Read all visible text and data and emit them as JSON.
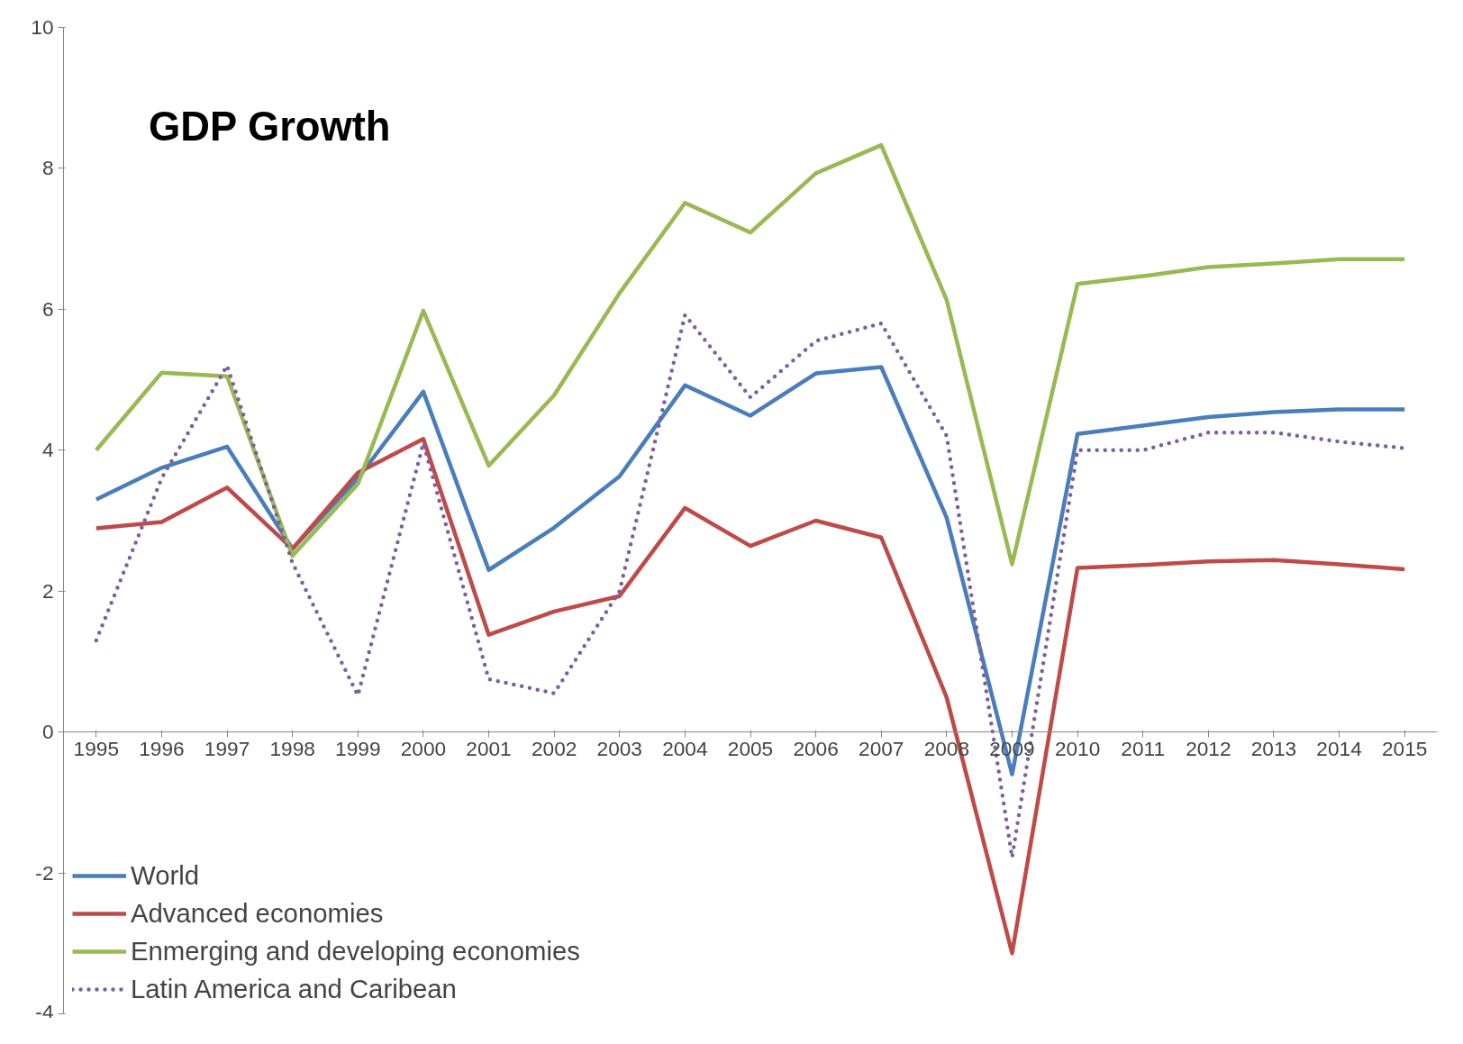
{
  "chart_data": {
    "type": "line",
    "title": "GDP Growth",
    "categories": [
      "1995",
      "1996",
      "1997",
      "1998",
      "1999",
      "2000",
      "2001",
      "2002",
      "2003",
      "2004",
      "2005",
      "2006",
      "2007",
      "2008",
      "2009",
      "2010",
      "2011",
      "2012",
      "2013",
      "2014",
      "2015"
    ],
    "series": [
      {
        "name": "World",
        "color": "#4a7ebb",
        "line_style": "solid",
        "values": [
          3.3,
          3.75,
          4.05,
          2.6,
          3.6,
          4.83,
          2.3,
          2.9,
          3.63,
          4.92,
          4.49,
          5.09,
          5.18,
          3.04,
          -0.6,
          4.23,
          4.35,
          4.47,
          4.54,
          4.58,
          4.58
        ]
      },
      {
        "name": "Advanced economies",
        "color": "#be4b48",
        "line_style": "solid",
        "values": [
          2.89,
          2.98,
          3.47,
          2.6,
          3.68,
          4.16,
          1.38,
          1.71,
          1.93,
          3.18,
          2.64,
          3.0,
          2.76,
          0.49,
          -3.14,
          2.33,
          2.37,
          2.42,
          2.44,
          2.38,
          2.31
        ]
      },
      {
        "name": "Enmerging and developing economies",
        "color": "#98b954",
        "line_style": "solid",
        "values": [
          4.0,
          5.1,
          5.05,
          2.5,
          3.52,
          5.98,
          3.78,
          4.78,
          6.23,
          7.51,
          7.09,
          7.93,
          8.33,
          6.13,
          2.38,
          6.36,
          6.47,
          6.6,
          6.65,
          6.71,
          6.71
        ]
      },
      {
        "name": "Latin America and Caribean",
        "color": "#7d5fa0",
        "line_style": "dotted",
        "values": [
          1.3,
          3.6,
          5.2,
          2.4,
          0.52,
          4.1,
          0.75,
          0.55,
          2.0,
          5.92,
          4.75,
          5.55,
          5.8,
          4.2,
          -1.78,
          4.0,
          4.0,
          4.25,
          4.25,
          4.12,
          4.03
        ]
      }
    ],
    "ylim": [
      -4,
      10
    ],
    "yticks": [
      -4,
      -2,
      0,
      2,
      4,
      6,
      8,
      10
    ],
    "grid": false,
    "legend": "bottom left"
  }
}
